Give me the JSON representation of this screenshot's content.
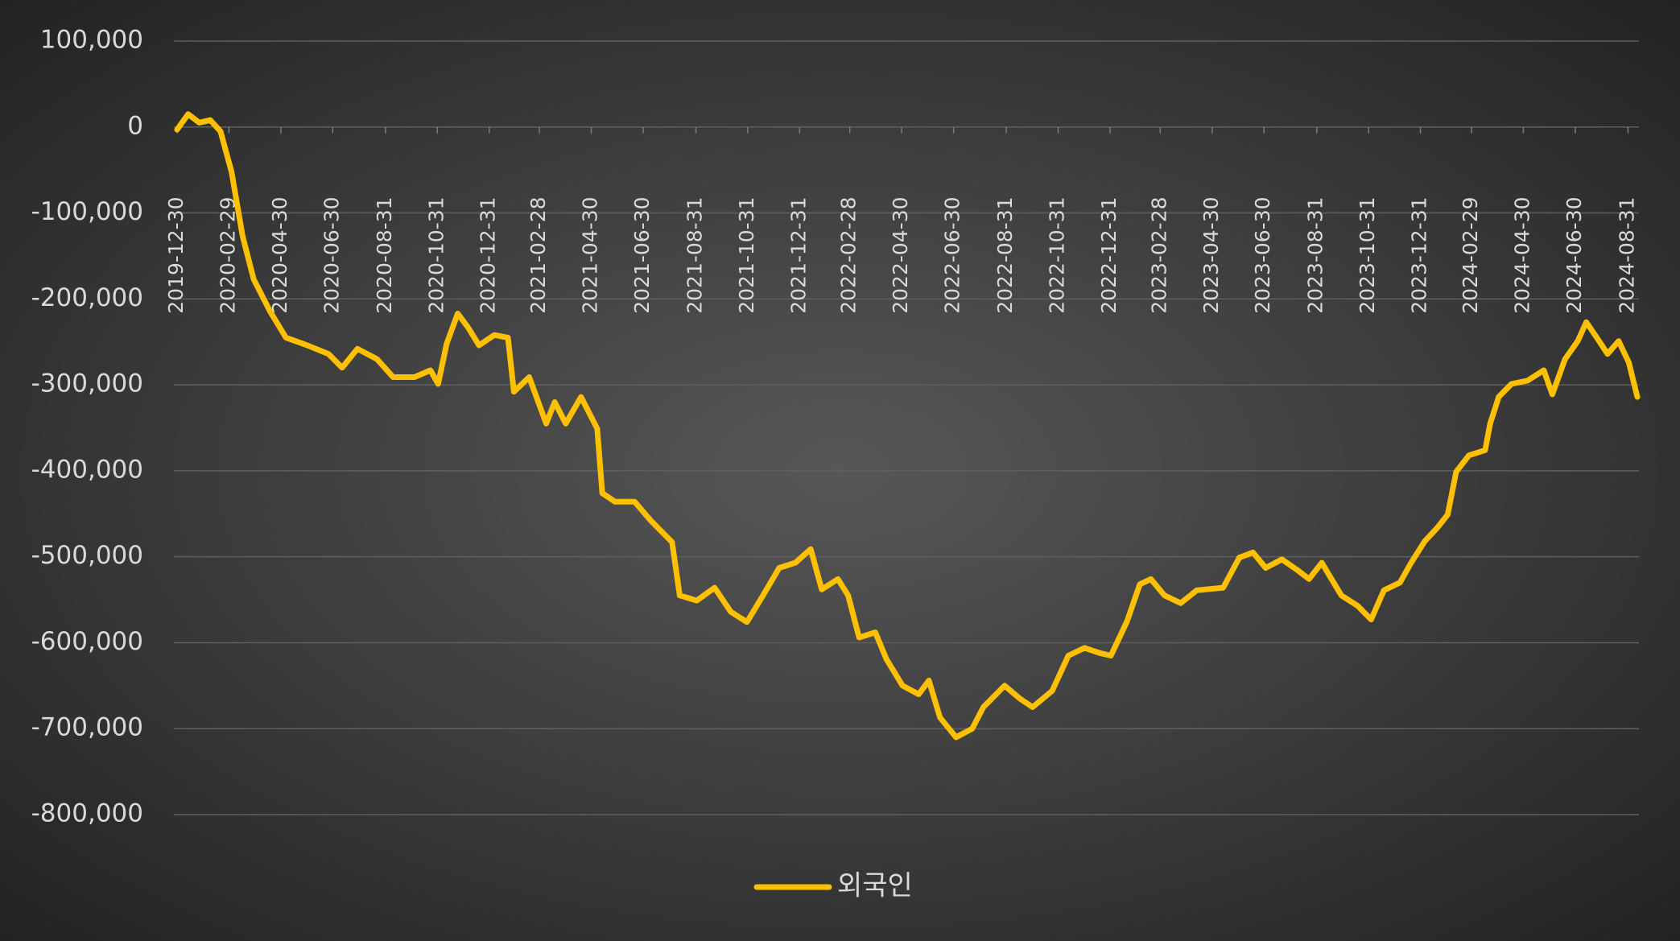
{
  "chart_data": {
    "type": "line",
    "x": [
      "2019-12-30",
      "2020-01-12",
      "2020-01-25",
      "2020-02-07",
      "2020-02-19",
      "2020-03-03",
      "2020-03-16",
      "2020-03-29",
      "2020-04-17",
      "2020-05-06",
      "2020-05-31",
      "2020-06-25",
      "2020-07-11",
      "2020-07-29",
      "2020-08-21",
      "2020-09-09",
      "2020-10-04",
      "2020-10-23",
      "2020-11-01",
      "2020-11-11",
      "2020-11-24",
      "2020-12-06",
      "2020-12-19",
      "2021-01-06",
      "2021-01-22",
      "2021-01-29",
      "2021-02-16",
      "2021-03-08",
      "2021-03-18",
      "2021-03-31",
      "2021-04-18",
      "2021-05-07",
      "2021-05-13",
      "2021-05-28",
      "2021-06-20",
      "2021-07-09",
      "2021-08-03",
      "2021-08-12",
      "2021-09-01",
      "2021-09-22",
      "2021-10-11",
      "2021-10-30",
      "2021-11-18",
      "2021-12-07",
      "2021-12-26",
      "2022-01-13",
      "2022-01-26",
      "2022-02-14",
      "2022-02-26",
      "2022-03-11",
      "2022-03-30",
      "2022-04-12",
      "2022-05-01",
      "2022-05-20",
      "2022-06-01",
      "2022-06-14",
      "2022-07-03",
      "2022-07-22",
      "2022-08-04",
      "2022-08-29",
      "2022-09-16",
      "2022-10-01",
      "2022-10-24",
      "2022-11-12",
      "2022-12-01",
      "2022-12-19",
      "2023-01-01",
      "2023-01-20",
      "2023-02-04",
      "2023-02-17",
      "2023-03-05",
      "2023-03-24",
      "2023-04-12",
      "2023-05-13",
      "2023-06-01",
      "2023-06-17",
      "2023-07-02",
      "2023-07-21",
      "2023-08-09",
      "2023-08-22",
      "2023-09-06",
      "2023-09-29",
      "2023-10-18",
      "2023-11-03",
      "2023-11-18",
      "2023-12-07",
      "2023-12-20",
      "2024-01-05",
      "2024-01-20",
      "2024-02-01",
      "2024-02-11",
      "2024-02-26",
      "2024-03-16",
      "2024-03-22",
      "2024-04-01",
      "2024-04-16",
      "2024-05-05",
      "2024-05-24",
      "2024-06-03",
      "2024-06-18",
      "2024-07-03",
      "2024-07-13",
      "2024-07-28",
      "2024-08-07",
      "2024-08-20",
      "2024-09-01",
      "2024-09-11"
    ],
    "series": [
      {
        "name": "외국인",
        "color": "#ffc000",
        "values": [
          -3000,
          15000,
          5000,
          8000,
          -5000,
          -52000,
          -127000,
          -177000,
          -214000,
          -245000,
          -254000,
          -264000,
          -280000,
          -258000,
          -270000,
          -291000,
          -291000,
          -283000,
          -299000,
          -252000,
          -217000,
          -233000,
          -254000,
          -242000,
          -245000,
          -308000,
          -291000,
          -345000,
          -320000,
          -345000,
          -314000,
          -351000,
          -426000,
          -436000,
          -436000,
          -458000,
          -483000,
          -545000,
          -551000,
          -536000,
          -564000,
          -576000,
          -545000,
          -513000,
          -507000,
          -491000,
          -538000,
          -526000,
          -545000,
          -594000,
          -588000,
          -619000,
          -650000,
          -660000,
          -644000,
          -687000,
          -710000,
          -700000,
          -675000,
          -650000,
          -665000,
          -675000,
          -656000,
          -615000,
          -606000,
          -612000,
          -615000,
          -575000,
          -532000,
          -526000,
          -545000,
          -554000,
          -539000,
          -536000,
          -501000,
          -495000,
          -513000,
          -503000,
          -516000,
          -526000,
          -507000,
          -545000,
          -557000,
          -573000,
          -539000,
          -530000,
          -507000,
          -482000,
          -466000,
          -451000,
          -401000,
          -382000,
          -376000,
          -345000,
          -314000,
          -299000,
          -295000,
          -283000,
          -311000,
          -270000,
          -249000,
          -227000,
          -249000,
          -264000,
          -249000,
          -274000,
          -314000
        ]
      }
    ],
    "xticks": [
      "2019-12-30",
      "2020-02-29",
      "2020-04-30",
      "2020-06-30",
      "2020-08-31",
      "2020-10-31",
      "2020-12-31",
      "2021-02-28",
      "2021-04-30",
      "2021-06-30",
      "2021-08-31",
      "2021-10-31",
      "2021-12-31",
      "2022-02-28",
      "2022-04-30",
      "2022-06-30",
      "2022-08-31",
      "2022-10-31",
      "2022-12-31",
      "2023-02-28",
      "2023-04-30",
      "2023-06-30",
      "2023-08-31",
      "2023-10-31",
      "2023-12-31",
      "2024-02-29",
      "2024-04-30",
      "2024-06-30",
      "2024-08-31"
    ],
    "ylim": [
      -800000,
      100000
    ],
    "yticks": [
      {
        "value": 100000,
        "label": "100,000"
      },
      0,
      {
        "value": -100000,
        "label": "-100,000"
      },
      {
        "value": -200000,
        "label": "-200,000"
      },
      {
        "value": -300000,
        "label": "-300,000"
      },
      {
        "value": -400000,
        "label": "-400,000"
      },
      {
        "value": -500000,
        "label": "-500,000"
      },
      {
        "value": -600000,
        "label": "-600,000"
      },
      {
        "value": -700000,
        "label": "-700,000"
      },
      {
        "value": -800000,
        "label": "-800,000"
      }
    ],
    "grid": true,
    "legend": "bottom"
  }
}
